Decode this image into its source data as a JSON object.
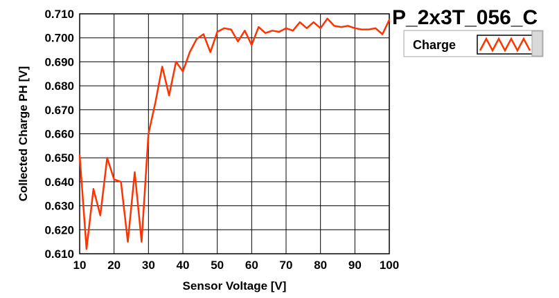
{
  "chart_data": {
    "type": "line",
    "title": "P_2x3T_056_C",
    "xlabel": "Sensor Voltage [V]",
    "ylabel": "Collected Charge PH [V]",
    "xlim": [
      10,
      100
    ],
    "ylim": [
      0.61,
      0.71
    ],
    "xticks": [
      10,
      20,
      30,
      40,
      50,
      60,
      70,
      80,
      90,
      100
    ],
    "xtick_labels": [
      "10",
      "20",
      "30",
      "40",
      "50",
      "60",
      "70",
      "80",
      "90",
      "100"
    ],
    "yticks": [
      0.61,
      0.62,
      0.63,
      0.64,
      0.65,
      0.66,
      0.67,
      0.68,
      0.69,
      0.7,
      0.71
    ],
    "ytick_labels": [
      "0.610",
      "0.620",
      "0.630",
      "0.640",
      "0.650",
      "0.660",
      "0.670",
      "0.680",
      "0.690",
      "0.700",
      "0.710"
    ],
    "grid": true,
    "legend_position": "top-right",
    "series": [
      {
        "name": "Charge",
        "color": "#ff3300",
        "x": [
          10,
          12,
          14,
          16,
          18,
          20,
          22,
          24,
          26,
          28,
          30,
          32,
          34,
          36,
          38,
          40,
          42,
          44,
          46,
          48,
          50,
          52,
          54,
          56,
          58,
          60,
          62,
          64,
          66,
          68,
          70,
          72,
          74,
          76,
          78,
          80,
          82,
          84,
          86,
          88,
          90,
          92,
          94,
          96,
          98,
          100
        ],
        "y": [
          0.651,
          0.612,
          0.637,
          0.626,
          0.65,
          0.641,
          0.64,
          0.615,
          0.644,
          0.615,
          0.66,
          0.673,
          0.688,
          0.676,
          0.69,
          0.686,
          0.694,
          0.6995,
          0.7015,
          0.694,
          0.7025,
          0.704,
          0.7035,
          0.6985,
          0.703,
          0.697,
          0.7045,
          0.702,
          0.703,
          0.7025,
          0.704,
          0.703,
          0.7065,
          0.704,
          0.7065,
          0.704,
          0.708,
          0.705,
          0.7045,
          0.705,
          0.704,
          0.7035,
          0.7035,
          0.704,
          0.7015,
          0.7075
        ]
      }
    ]
  }
}
